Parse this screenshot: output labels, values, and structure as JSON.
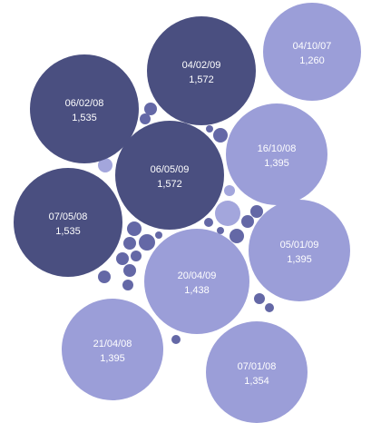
{
  "chart_data": {
    "type": "bubble",
    "colors": {
      "dark": "#4a4f80",
      "medium": "#6569a8",
      "light": "#9b9ed8",
      "small_dark": "#6468a6",
      "small_light": "#a3a6dc"
    },
    "bubbles": [
      {
        "date": "04/10/07",
        "value": "1,260",
        "tone": "light"
      },
      {
        "date": "04/02/09",
        "value": "1,572",
        "tone": "dark"
      },
      {
        "date": "06/02/08",
        "value": "1,535",
        "tone": "dark"
      },
      {
        "date": "06/05/09",
        "value": "1,572",
        "tone": "dark"
      },
      {
        "date": "16/10/08",
        "value": "1,395",
        "tone": "light"
      },
      {
        "date": "07/05/08",
        "value": "1,535",
        "tone": "dark"
      },
      {
        "date": "05/01/09",
        "value": "1,395",
        "tone": "light"
      },
      {
        "date": "20/04/09",
        "value": "1,438",
        "tone": "light"
      },
      {
        "date": "21/04/08",
        "value": "1,395",
        "tone": "light"
      },
      {
        "date": "07/01/08",
        "value": "1,354",
        "tone": "light"
      }
    ],
    "small_bubbles": [
      {
        "tone": "small_light"
      },
      {
        "tone": "small_dark"
      },
      {
        "tone": "small_dark"
      },
      {
        "tone": "small_light"
      },
      {
        "tone": "small_dark"
      },
      {
        "tone": "small_dark"
      },
      {
        "tone": "small_light"
      },
      {
        "tone": "small_dark"
      },
      {
        "tone": "small_dark"
      },
      {
        "tone": "small_dark"
      },
      {
        "tone": "small_dark"
      },
      {
        "tone": "small_dark"
      },
      {
        "tone": "small_dark"
      },
      {
        "tone": "small_dark"
      },
      {
        "tone": "small_dark"
      },
      {
        "tone": "small_dark"
      },
      {
        "tone": "small_dark"
      },
      {
        "tone": "small_dark"
      },
      {
        "tone": "small_dark"
      },
      {
        "tone": "small_dark"
      },
      {
        "tone": "small_dark"
      },
      {
        "tone": "small_dark"
      },
      {
        "tone": "small_dark"
      },
      {
        "tone": "small_dark"
      },
      {
        "tone": "small_dark"
      }
    ]
  }
}
